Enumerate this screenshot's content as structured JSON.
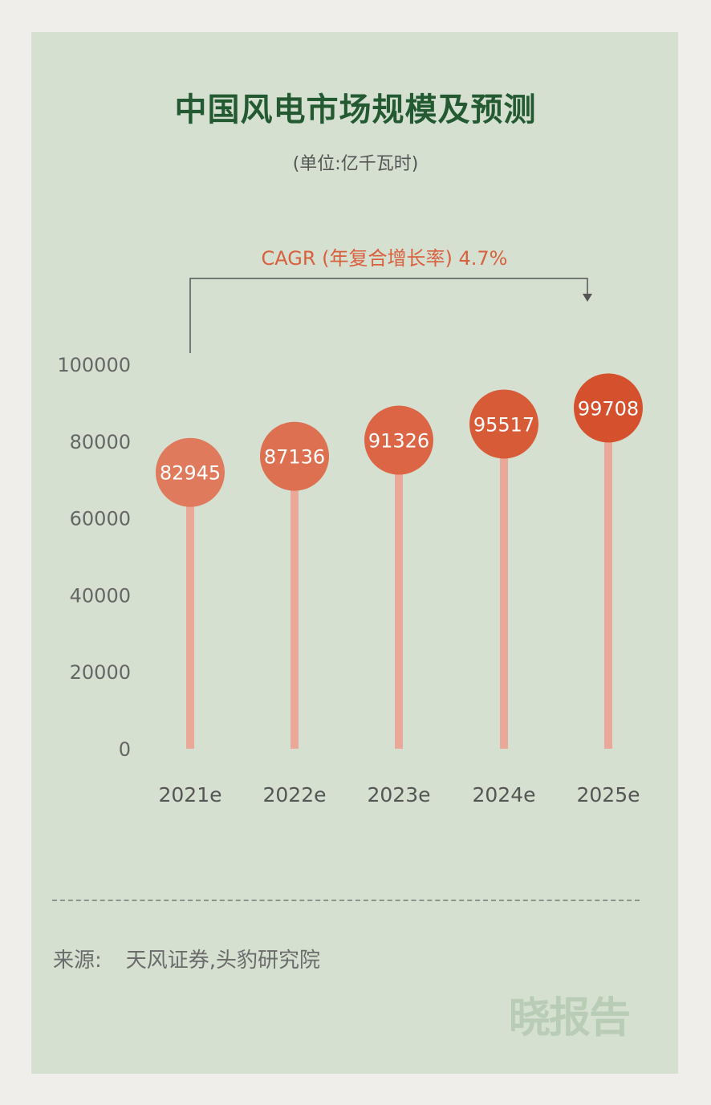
{
  "chart_data": {
    "type": "lollipop",
    "title": "中国风电市场规模及预测",
    "subtitle": "(单位:亿千瓦时)",
    "annotation": "CAGR (年复合增长率) 4.7%",
    "categories": [
      "2021e",
      "2022e",
      "2023e",
      "2024e",
      "2025e"
    ],
    "values": [
      82945,
      87136,
      91326,
      95517,
      99708
    ],
    "yticks": [
      "0",
      "20000",
      "40000",
      "60000",
      "80000",
      "100000"
    ],
    "ylim": [
      0,
      100000
    ],
    "grid": false,
    "colors": {
      "stem": "#eaa898",
      "marker_start": "#e07a5c",
      "marker_end": "#d5502c",
      "title": "#245a32",
      "annotation": "#d9603d"
    }
  },
  "footer": {
    "source_label": "来源:",
    "source_text": "天风证券,头豹研究院"
  },
  "watermark": "晓报告"
}
